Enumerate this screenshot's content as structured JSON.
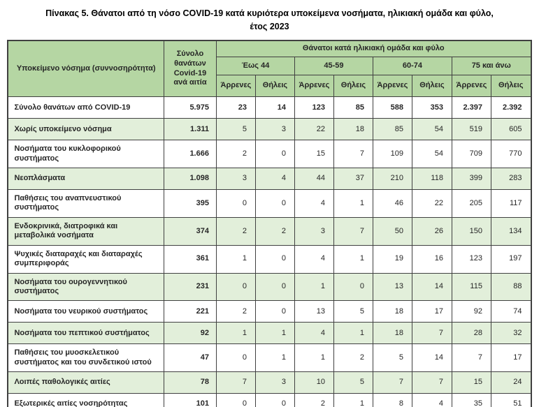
{
  "title": {
    "line1": "Πίνακας 5. Θάνατοι από τη νόσο COVID-19 κατά κυριότερα υποκείμενα νοσήματα, ηλικιακή ομάδα και φύλο,",
    "line2": "έτος 2023"
  },
  "colors": {
    "header_green": "#b5d6a3",
    "stripe_green": "#e2efda",
    "border": "#404040",
    "text": "#262626"
  },
  "table": {
    "col_disease_header": "Υποκείμενο νόσημα (συννοσηρότητα)",
    "col_total_header": "Σύνολο θανάτων Covid-19 ανά αιτία",
    "group_header": "Θάνατοι κατά ηλικιακή ομάδα και φύλο",
    "age_groups": [
      "Έως 44",
      "45-59",
      "60-74",
      "75 και άνω"
    ],
    "sex_labels": [
      "Άρρενες",
      "Θήλεις"
    ],
    "rows": [
      {
        "label": "Σύνολο θανάτων από COVID-19",
        "total": "5.975",
        "values": [
          "23",
          "14",
          "123",
          "85",
          "588",
          "353",
          "2.397",
          "2.392"
        ]
      },
      {
        "label": "Χωρίς υποκείμενο νόσημα",
        "total": "1.311",
        "values": [
          "5",
          "3",
          "22",
          "18",
          "85",
          "54",
          "519",
          "605"
        ]
      },
      {
        "label": "Νοσήματα του κυκλοφορικού συστήματος",
        "total": "1.666",
        "values": [
          "2",
          "0",
          "15",
          "7",
          "109",
          "54",
          "709",
          "770"
        ]
      },
      {
        "label": "Νεοπλάσματα",
        "total": "1.098",
        "values": [
          "3",
          "4",
          "44",
          "37",
          "210",
          "118",
          "399",
          "283"
        ]
      },
      {
        "label": "Παθήσεις του αναπνευστικού συστήματος",
        "total": "395",
        "values": [
          "0",
          "0",
          "4",
          "1",
          "46",
          "22",
          "205",
          "117"
        ]
      },
      {
        "label": "Ενδοκρινικά, διατροφικά και μεταβολικά νοσήματα",
        "total": "374",
        "values": [
          "2",
          "2",
          "3",
          "7",
          "50",
          "26",
          "150",
          "134"
        ]
      },
      {
        "label": "Ψυχικές διαταραχές και διαταραχές συμπεριφοράς",
        "total": "361",
        "values": [
          "1",
          "0",
          "4",
          "1",
          "19",
          "16",
          "123",
          "197"
        ]
      },
      {
        "label": "Νοσήματα του ουρογεννητικού συστήματος",
        "total": "231",
        "values": [
          "0",
          "0",
          "1",
          "0",
          "13",
          "14",
          "115",
          "88"
        ]
      },
      {
        "label": "Νοσήματα του νευρικού συστήματος",
        "total": "221",
        "values": [
          "2",
          "0",
          "13",
          "5",
          "18",
          "17",
          "92",
          "74"
        ]
      },
      {
        "label": "Νοσήματα του πεπτικού συστήματος",
        "total": "92",
        "values": [
          "1",
          "1",
          "4",
          "1",
          "18",
          "7",
          "28",
          "32"
        ]
      },
      {
        "label": "Παθήσεις του μυοσκελετικού συστήματος και του συνδετικού ιστού",
        "total": "47",
        "values": [
          "0",
          "1",
          "1",
          "2",
          "5",
          "14",
          "7",
          "17"
        ]
      },
      {
        "label": "Λοιπές παθολογικές αιτίες",
        "total": "78",
        "values": [
          "7",
          "3",
          "10",
          "5",
          "7",
          "7",
          "15",
          "24"
        ]
      },
      {
        "label": "Εξωτερικές αιτίες νοσηρότητας",
        "total": "101",
        "values": [
          "0",
          "0",
          "2",
          "1",
          "8",
          "4",
          "35",
          "51"
        ]
      }
    ]
  }
}
